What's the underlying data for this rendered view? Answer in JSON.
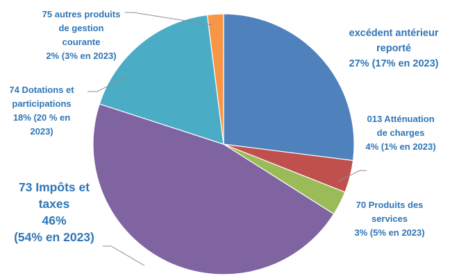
{
  "chart_data": {
    "type": "pie",
    "title": "",
    "start_angle_deg": 0,
    "direction": "clockwise",
    "slices": [
      {
        "key": "excedent",
        "value": 27,
        "color": "#4F81BD",
        "label_lines": [
          "excédent antérieur",
          "reporté",
          "27% (17% en 2023)"
        ]
      },
      {
        "key": "attenuation",
        "value": 4,
        "color": "#C0504D",
        "label_lines": [
          "013 Atténuation",
          "de charges",
          "4% (1% en 2023)"
        ]
      },
      {
        "key": "produits-services",
        "value": 3,
        "color": "#9BBB59",
        "label_lines": [
          "70 Produits des",
          "services",
          "3% (5% en 2023)"
        ]
      },
      {
        "key": "impots-taxes",
        "value": 46,
        "color": "#8064A2",
        "label_lines": [
          "73 Impôts et",
          "taxes",
          "46%",
          "(54% en 2023)"
        ]
      },
      {
        "key": "dotations",
        "value": 18,
        "color": "#4BACC6",
        "label_lines": [
          "74 Dotations et",
          "participations",
          "18% (20 % en",
          "2023)"
        ]
      },
      {
        "key": "autres-produits",
        "value": 2,
        "color": "#F79646",
        "label_lines": [
          "75 autres produits",
          "de gestion",
          "courante",
          "2% (3% en 2023)"
        ]
      }
    ]
  }
}
